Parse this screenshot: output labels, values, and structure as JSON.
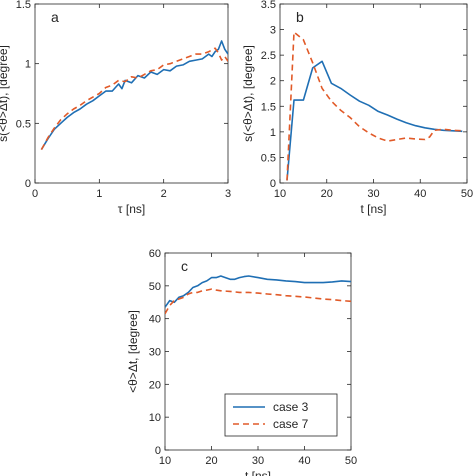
{
  "colors": {
    "case3": "#1f6fb4",
    "case7": "#e15a28",
    "axis": "#262626"
  },
  "chart_data": [
    {
      "id": "a",
      "type": "line",
      "panel_label": "a",
      "xlabel": "τ [ns]",
      "ylabel": "s(<θ>Δt), [degree]",
      "xlim": [
        0,
        3
      ],
      "ylim": [
        0,
        1.5
      ],
      "xticks": [
        0,
        1,
        2,
        3
      ],
      "yticks": [
        0,
        0.5,
        1,
        1.5
      ],
      "xtick_labels": [
        "0",
        "1",
        "2",
        "3"
      ],
      "ytick_labels": [
        "0",
        "0.5",
        "1",
        "1.5"
      ],
      "series": [
        {
          "name": "case 3",
          "color_key": "case3",
          "dashed": false,
          "points": [
            [
              0.1,
              0.28
            ],
            [
              0.2,
              0.37
            ],
            [
              0.3,
              0.45
            ],
            [
              0.4,
              0.5
            ],
            [
              0.5,
              0.55
            ],
            [
              0.6,
              0.59
            ],
            [
              0.7,
              0.62
            ],
            [
              0.8,
              0.66
            ],
            [
              0.9,
              0.69
            ],
            [
              1.0,
              0.73
            ],
            [
              1.1,
              0.77
            ],
            [
              1.2,
              0.77
            ],
            [
              1.3,
              0.83
            ],
            [
              1.35,
              0.79
            ],
            [
              1.4,
              0.86
            ],
            [
              1.5,
              0.84
            ],
            [
              1.6,
              0.9
            ],
            [
              1.7,
              0.88
            ],
            [
              1.8,
              0.93
            ],
            [
              1.9,
              0.91
            ],
            [
              2.0,
              0.95
            ],
            [
              2.1,
              0.94
            ],
            [
              2.2,
              0.98
            ],
            [
              2.3,
              0.99
            ],
            [
              2.4,
              1.02
            ],
            [
              2.5,
              1.03
            ],
            [
              2.6,
              1.04
            ],
            [
              2.7,
              1.08
            ],
            [
              2.75,
              1.06
            ],
            [
              2.8,
              1.1
            ],
            [
              2.85,
              1.12
            ],
            [
              2.9,
              1.19
            ],
            [
              2.95,
              1.12
            ],
            [
              3.0,
              1.08
            ]
          ]
        },
        {
          "name": "case 7",
          "color_key": "case7",
          "dashed": true,
          "points": [
            [
              0.1,
              0.28
            ],
            [
              0.2,
              0.38
            ],
            [
              0.3,
              0.46
            ],
            [
              0.4,
              0.53
            ],
            [
              0.5,
              0.58
            ],
            [
              0.6,
              0.62
            ],
            [
              0.7,
              0.65
            ],
            [
              0.8,
              0.69
            ],
            [
              0.9,
              0.72
            ],
            [
              1.0,
              0.75
            ],
            [
              1.1,
              0.8
            ],
            [
              1.2,
              0.82
            ],
            [
              1.3,
              0.86
            ],
            [
              1.4,
              0.85
            ],
            [
              1.5,
              0.89
            ],
            [
              1.6,
              0.88
            ],
            [
              1.7,
              0.91
            ],
            [
              1.8,
              0.94
            ],
            [
              1.9,
              0.95
            ],
            [
              2.0,
              0.99
            ],
            [
              2.1,
              1.0
            ],
            [
              2.2,
              1.02
            ],
            [
              2.3,
              1.04
            ],
            [
              2.4,
              1.06
            ],
            [
              2.5,
              1.08
            ],
            [
              2.6,
              1.08
            ],
            [
              2.7,
              1.1
            ],
            [
              2.8,
              1.13
            ],
            [
              2.85,
              1.09
            ],
            [
              2.9,
              1.03
            ],
            [
              2.95,
              1.06
            ],
            [
              3.0,
              1.02
            ]
          ]
        }
      ]
    },
    {
      "id": "b",
      "type": "line",
      "panel_label": "b",
      "xlabel": "t [ns]",
      "ylabel": "",
      "xlim": [
        10,
        50
      ],
      "ylim": [
        0,
        3.5
      ],
      "xticks": [
        10,
        20,
        30,
        40,
        50
      ],
      "yticks": [
        0,
        0.5,
        1,
        1.5,
        2,
        2.5,
        3,
        3.5
      ],
      "xtick_labels": [
        "10",
        "20",
        "30",
        "40",
        "50"
      ],
      "ytick_labels": [
        "0",
        "0.5",
        "1",
        "1.5",
        "2",
        "2.5",
        "3",
        "3.5"
      ],
      "series": [
        {
          "name": "case 3",
          "color_key": "case3",
          "dashed": false,
          "points": [
            [
              11.5,
              0.05
            ],
            [
              13,
              1.62
            ],
            [
              15,
              1.62
            ],
            [
              17,
              2.25
            ],
            [
              19,
              2.38
            ],
            [
              21,
              1.95
            ],
            [
              23,
              1.85
            ],
            [
              25,
              1.72
            ],
            [
              27,
              1.6
            ],
            [
              29,
              1.52
            ],
            [
              31,
              1.4
            ],
            [
              33,
              1.33
            ],
            [
              35,
              1.25
            ],
            [
              37,
              1.18
            ],
            [
              39,
              1.12
            ],
            [
              41,
              1.08
            ],
            [
              43,
              1.05
            ],
            [
              45,
              1.03
            ],
            [
              47,
              1.02
            ],
            [
              49,
              1.01
            ]
          ]
        },
        {
          "name": "case 7",
          "color_key": "case7",
          "dashed": true,
          "points": [
            [
              11.5,
              0.05
            ],
            [
              13,
              2.95
            ],
            [
              15,
              2.8
            ],
            [
              17,
              2.35
            ],
            [
              19,
              1.85
            ],
            [
              21,
              1.6
            ],
            [
              23,
              1.42
            ],
            [
              25,
              1.28
            ],
            [
              27,
              1.1
            ],
            [
              29,
              0.98
            ],
            [
              31,
              0.88
            ],
            [
              33,
              0.82
            ],
            [
              35,
              0.85
            ],
            [
              37,
              0.88
            ],
            [
              39,
              0.86
            ],
            [
              41,
              0.85
            ],
            [
              42,
              0.9
            ],
            [
              43,
              1.03
            ],
            [
              45,
              1.05
            ],
            [
              47,
              1.03
            ],
            [
              49,
              1.02
            ]
          ]
        }
      ]
    },
    {
      "id": "c",
      "type": "line",
      "panel_label": "c",
      "xlabel": "t [ns]",
      "ylabel": "<θ>Δt, [degree]",
      "xlim": [
        10,
        50
      ],
      "ylim": [
        0,
        60
      ],
      "xticks": [
        10,
        20,
        30,
        40,
        50
      ],
      "yticks": [
        0,
        10,
        20,
        30,
        40,
        50,
        60
      ],
      "xtick_labels": [
        "10",
        "20",
        "30",
        "40",
        "50"
      ],
      "ytick_labels": [
        "0",
        "10",
        "20",
        "30",
        "40",
        "50",
        "60"
      ],
      "legend_position": "bottom-right",
      "series": [
        {
          "name": "case 3",
          "color_key": "case3",
          "dashed": false,
          "points": [
            [
              10,
              43.5
            ],
            [
              11,
              45.5
            ],
            [
              12,
              45.0
            ],
            [
              13,
              46.5
            ],
            [
              14,
              47.0
            ],
            [
              15,
              48.0
            ],
            [
              16,
              49.5
            ],
            [
              17,
              50.0
            ],
            [
              18,
              51.0
            ],
            [
              19,
              51.5
            ],
            [
              20,
              52.5
            ],
            [
              21,
              52.5
            ],
            [
              22,
              53.0
            ],
            [
              23,
              52.5
            ],
            [
              24,
              52.0
            ],
            [
              25,
              52.0
            ],
            [
              26,
              52.5
            ],
            [
              27,
              52.8
            ],
            [
              28,
              53.0
            ],
            [
              30,
              52.5
            ],
            [
              32,
              52.0
            ],
            [
              34,
              51.8
            ],
            [
              36,
              51.5
            ],
            [
              38,
              51.3
            ],
            [
              40,
              51.0
            ],
            [
              42,
              51.0
            ],
            [
              44,
              51.0
            ],
            [
              46,
              51.2
            ],
            [
              48,
              51.5
            ],
            [
              50,
              51.3
            ]
          ]
        },
        {
          "name": "case 7",
          "color_key": "case7",
          "dashed": true,
          "points": [
            [
              10,
              41.5
            ],
            [
              11,
              44.0
            ],
            [
              12,
              45.5
            ],
            [
              13,
              46.0
            ],
            [
              14,
              46.5
            ],
            [
              15,
              47.5
            ],
            [
              16,
              48.0
            ],
            [
              17,
              48.0
            ],
            [
              18,
              48.5
            ],
            [
              19,
              48.7
            ],
            [
              20,
              49.0
            ],
            [
              21,
              48.7
            ],
            [
              22,
              48.5
            ],
            [
              24,
              48.3
            ],
            [
              26,
              48.0
            ],
            [
              28,
              48.0
            ],
            [
              30,
              47.8
            ],
            [
              32,
              47.5
            ],
            [
              34,
              47.3
            ],
            [
              36,
              47.0
            ],
            [
              38,
              46.8
            ],
            [
              40,
              46.6
            ],
            [
              42,
              46.3
            ],
            [
              44,
              46.0
            ],
            [
              46,
              45.8
            ],
            [
              48,
              45.5
            ],
            [
              50,
              45.3
            ]
          ]
        }
      ]
    }
  ]
}
